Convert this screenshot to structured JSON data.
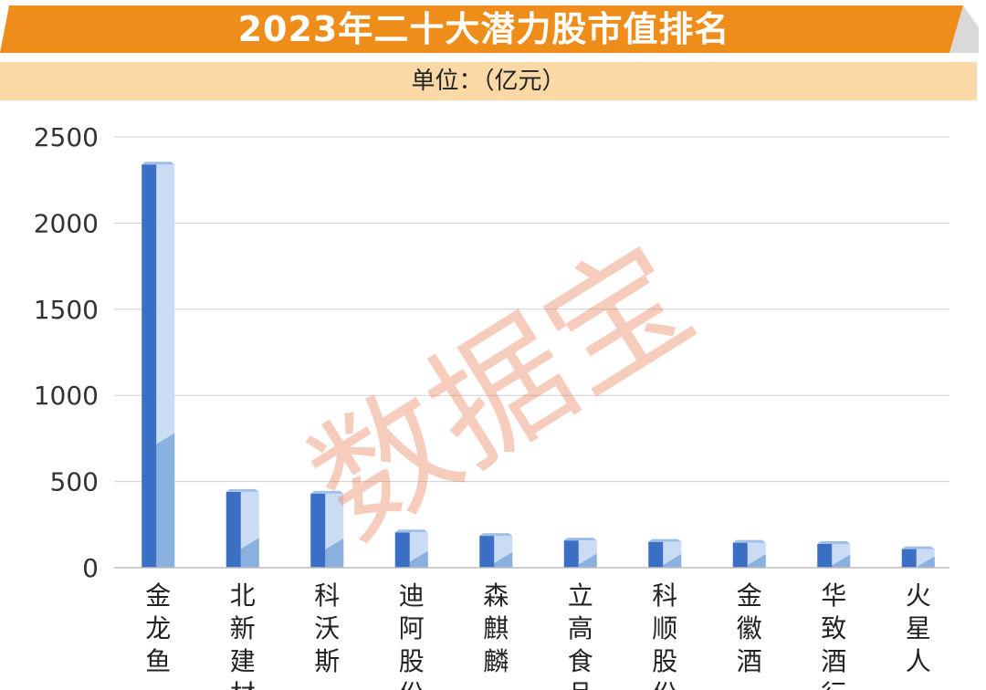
{
  "header": {
    "title": "2023年二十大潜力股市值排名",
    "unit": "单位：（亿元）"
  },
  "watermark": "数据宝",
  "colors": {
    "orange": "#ef8d1b",
    "bar_dark": "#3a6fc4",
    "bar_light": "#c9dcf3",
    "bar_mid": "#8ab0e0",
    "unit_bg": "#fbd9a6"
  },
  "chart_data": {
    "type": "bar",
    "title": "2023年二十大潜力股市值排名",
    "unit": "单位：（亿元）",
    "categories": [
      "金龙鱼",
      "北新建材",
      "科沃斯",
      "迪阿股份",
      "森麒麟",
      "立高食品",
      "科顺股份",
      "金徽酒",
      "华致酒行",
      "火星人"
    ],
    "values": [
      2340,
      440,
      430,
      205,
      185,
      158,
      150,
      145,
      138,
      108
    ],
    "ylim": [
      0,
      2500
    ],
    "yticks": [
      0,
      500,
      1000,
      1500,
      2000,
      2500
    ],
    "grid": true,
    "legend": "none"
  }
}
